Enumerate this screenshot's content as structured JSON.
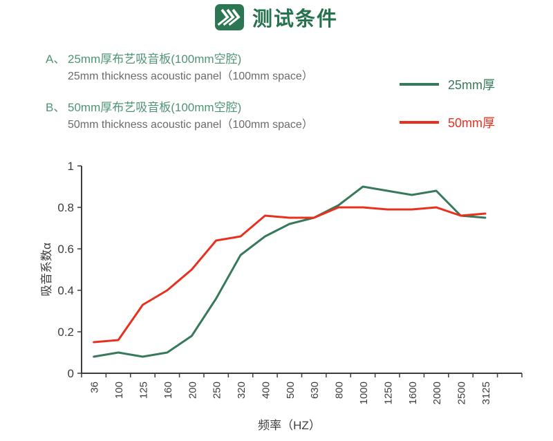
{
  "header": {
    "title": "测试条件",
    "icon": "triple-chevron-icon"
  },
  "colors": {
    "title_green": "#26714e",
    "heading_green": "#4e9474",
    "text_gray": "#6a6a6a",
    "axis_gray": "#3c3c3c",
    "series_green": "#37795a",
    "series_red": "#e8301f"
  },
  "conditions": [
    {
      "marker": "A、",
      "label_cn": "25mm厚布艺吸音板(100mm空腔)",
      "label_en": "25mm thickness acoustic panel（100mm space）"
    },
    {
      "marker": "B、",
      "label_cn": "50mm厚布艺吸音板(100mm空腔)",
      "label_en": "50mm thickness acoustic panel（100mm space）"
    }
  ],
  "legend": [
    {
      "label": "25mm厚",
      "color": "#37795a"
    },
    {
      "label": "50mm厚",
      "color": "#e8301f"
    }
  ],
  "chart_data": {
    "type": "line",
    "title": "",
    "xlabel": "频率（HZ）",
    "ylabel": "吸音系数α",
    "categories": [
      "36",
      "100",
      "125",
      "160",
      "200",
      "250",
      "320",
      "400",
      "500",
      "630",
      "800",
      "1000",
      "1250",
      "1600",
      "2000",
      "2500",
      "3125"
    ],
    "series": [
      {
        "name": "25mm厚",
        "color": "#37795a",
        "values": [
          0.08,
          0.1,
          0.08,
          0.1,
          0.18,
          0.36,
          0.57,
          0.66,
          0.72,
          0.75,
          0.81,
          0.9,
          0.88,
          0.86,
          0.88,
          0.76,
          0.75
        ]
      },
      {
        "name": "50mm厚",
        "color": "#e8301f",
        "values": [
          0.15,
          0.16,
          0.33,
          0.4,
          0.5,
          0.64,
          0.66,
          0.76,
          0.75,
          0.75,
          0.8,
          0.8,
          0.79,
          0.79,
          0.8,
          0.76,
          0.77
        ]
      }
    ],
    "ylim": [
      0,
      1
    ],
    "y_ticks": [
      0,
      0.2,
      0.4,
      0.6,
      0.8,
      1
    ],
    "y_tick_labels": [
      "0",
      "0.2",
      "0.4",
      "0.6",
      "0.8",
      "1"
    ],
    "grid": false,
    "x_tick_rotation": -90,
    "legend_position": "right-of-conditions"
  }
}
